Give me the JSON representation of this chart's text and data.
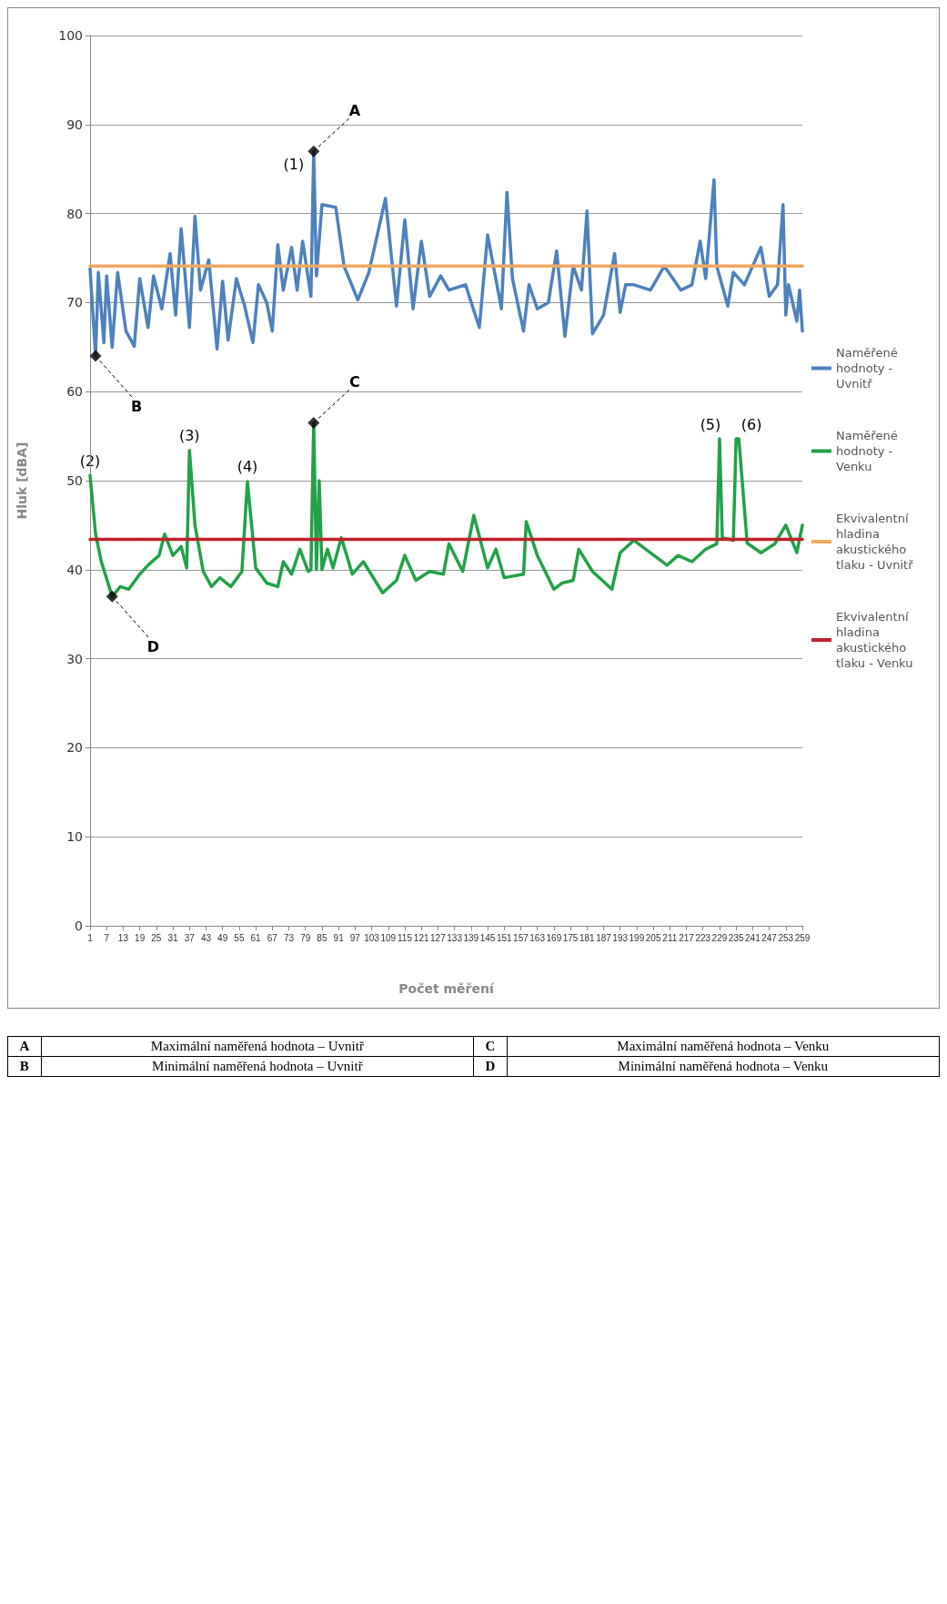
{
  "chart_data": {
    "type": "line",
    "xlabel": "Počet měření",
    "ylabel": "Hluk [dBA]",
    "xlim": [
      1,
      259
    ],
    "xticks": [
      1,
      7,
      13,
      19,
      25,
      31,
      37,
      43,
      49,
      55,
      61,
      67,
      73,
      79,
      85,
      91,
      97,
      103,
      109,
      115,
      121,
      127,
      133,
      139,
      145,
      151,
      157,
      163,
      169,
      175,
      181,
      187,
      193,
      199,
      205,
      211,
      217,
      223,
      229,
      235,
      241,
      247,
      253,
      259
    ],
    "ylim": [
      0,
      100
    ],
    "yticks": [
      0,
      10,
      20,
      30,
      40,
      50,
      60,
      70,
      80,
      90,
      100
    ],
    "grid": "y",
    "legend": "right",
    "marker": "none",
    "line_style": "solid",
    "series": [
      {
        "name": "Naměřené hodnoty - Uvnitř",
        "color": "#4f81bd",
        "x": [
          1,
          3,
          4,
          6,
          7,
          9,
          11,
          14,
          17,
          19,
          22,
          24,
          27,
          30,
          32,
          34,
          37,
          39,
          41,
          44,
          47,
          49,
          51,
          54,
          57,
          60,
          62,
          65,
          67,
          69,
          71,
          74,
          76,
          78,
          81,
          82,
          83,
          85,
          90,
          93,
          98,
          102,
          108,
          112,
          115,
          118,
          121,
          124,
          128,
          131,
          137,
          142,
          145,
          150,
          152,
          154,
          158,
          160,
          163,
          167,
          170,
          173,
          176,
          179,
          181,
          183,
          187,
          191,
          193,
          195,
          198,
          204,
          209,
          215,
          219,
          222,
          224,
          227,
          228,
          232,
          234,
          238,
          244,
          247,
          250,
          252,
          253,
          254,
          257,
          258,
          259
        ],
        "values": [
          73.8,
          64,
          73.4,
          65.5,
          73,
          65,
          73.4,
          66.8,
          65.1,
          72.7,
          67.2,
          73,
          69.3,
          75.5,
          68.6,
          78.3,
          67.2,
          79.7,
          71.4,
          74.8,
          64.8,
          72.4,
          65.8,
          72.7,
          69.6,
          65.5,
          72,
          70,
          66.8,
          76.5,
          71.4,
          76.2,
          71.4,
          76.9,
          70.7,
          87,
          73,
          81,
          80.7,
          74.1,
          70.3,
          73.4,
          81.7,
          69.6,
          79.3,
          69.3,
          76.9,
          70.7,
          73,
          71.4,
          72,
          67.2,
          77.6,
          69.3,
          82.4,
          72.7,
          66.8,
          72,
          69.3,
          70,
          75.8,
          66.2,
          74.1,
          71.4,
          80.3,
          66.5,
          68.6,
          75.5,
          68.9,
          72,
          72,
          71.4,
          74.1,
          71.4,
          72,
          76.9,
          72.7,
          83.8,
          74.1,
          69.6,
          73.4,
          72,
          76.2,
          70.7,
          72,
          81,
          68.6,
          72,
          67.9,
          71.4,
          66.8
        ]
      },
      {
        "name": "Naměřené hodnoty - Venku",
        "color": "#23a04a",
        "x": [
          1,
          3,
          5,
          9,
          12,
          15,
          19,
          22,
          26,
          28,
          31,
          34,
          36,
          37,
          39,
          42,
          45,
          48,
          52,
          56,
          58,
          61,
          65,
          69,
          71,
          74,
          77,
          80,
          81,
          82,
          83,
          84,
          85,
          87,
          89,
          92,
          96,
          100,
          107,
          112,
          115,
          119,
          124,
          129,
          131,
          136,
          140,
          145,
          148,
          151,
          158,
          159,
          163,
          169,
          172,
          176,
          178,
          183,
          190,
          193,
          198,
          210,
          214,
          219,
          224,
          228,
          229,
          230,
          234,
          235,
          236,
          239,
          244,
          249,
          253,
          257,
          259
        ],
        "values": [
          50.6,
          44,
          41,
          37,
          38.1,
          37.8,
          39.5,
          40.5,
          41.6,
          44,
          41.6,
          42.6,
          40.2,
          53.4,
          45,
          39.8,
          38.1,
          39.1,
          38.1,
          39.8,
          49.9,
          40.2,
          38.5,
          38.1,
          40.9,
          39.5,
          42.3,
          39.8,
          40,
          56.5,
          40,
          50,
          40,
          42.3,
          40.2,
          43.6,
          39.5,
          40.9,
          37.4,
          38.8,
          41.6,
          38.8,
          39.8,
          39.5,
          42.9,
          39.8,
          46.1,
          40.2,
          42.3,
          39.1,
          39.5,
          45.4,
          41.6,
          37.8,
          38.5,
          38.8,
          42.3,
          39.8,
          37.8,
          41.9,
          43.3,
          40.5,
          41.6,
          40.9,
          42.3,
          42.9,
          54.7,
          43.6,
          43.3,
          54.7,
          54.7,
          43,
          41.9,
          42.9,
          45,
          41.9,
          45
        ]
      },
      {
        "name": "Ekvivalentní hladina akustického tlaku - Uvnitř",
        "color": "#f0a860",
        "x": [
          1,
          259
        ],
        "values": [
          74.1,
          74.1
        ]
      },
      {
        "name": "Ekvivalentní hladina akustického tlaku - Venku",
        "color": "#c0202a",
        "x": [
          1,
          259
        ],
        "values": [
          43.4,
          43.4
        ]
      },
      {
        "type": "scatter",
        "marker": "diamond",
        "color": "#000000",
        "x": [
          82,
          3,
          82,
          9
        ],
        "values": [
          87,
          64,
          56.5,
          37
        ]
      }
    ],
    "annotations": [
      {
        "text": "A",
        "x": 82,
        "y": 87
      },
      {
        "text": "B",
        "x": 3,
        "y": 64
      },
      {
        "text": "C",
        "x": 82,
        "y": 56.5
      },
      {
        "text": "D",
        "x": 9,
        "y": 37
      },
      {
        "text": "(1)",
        "x": 82,
        "y": 87
      },
      {
        "text": "(2)",
        "x": 1,
        "y": 50.6
      },
      {
        "text": "(3)",
        "x": 37,
        "y": 53.4
      },
      {
        "text": "(4)",
        "x": 58,
        "y": 49.9
      },
      {
        "text": "(5)",
        "x": 229,
        "y": 54.7
      },
      {
        "text": "(6)",
        "x": 236,
        "y": 54.7
      },
      "A",
      "Maximální naměřená hodnota – Uvnitř",
      "C",
      "Maximální naměřená hodnota – Venku",
      "B",
      "Minimální naměřená hodnota – Uvnitř",
      "D",
      "Minimální naměřená hodnota – Venku"
    ]
  }
}
